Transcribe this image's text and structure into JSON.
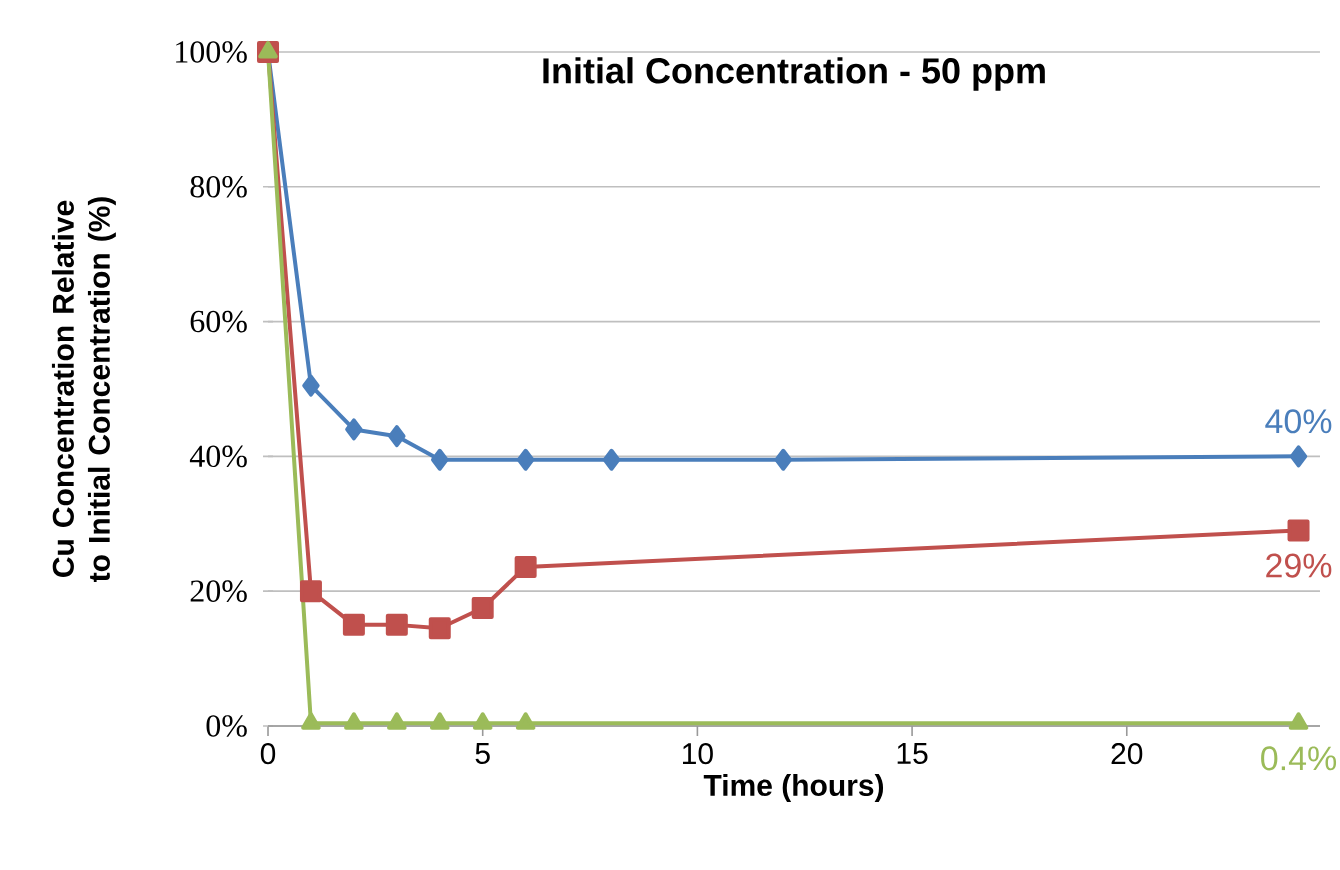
{
  "chart_data": {
    "type": "line",
    "title": "Initial Concentration - 50 ppm",
    "xlabel": "Time (hours)",
    "ylabel": "Cu Concentration Relative to Initial Concentration (%)",
    "xlim": [
      0,
      24.5
    ],
    "xticks": [
      0,
      5,
      10,
      15,
      20
    ],
    "ylim": [
      0,
      100
    ],
    "yticks": [
      {
        "value": 0,
        "label": "0%"
      },
      {
        "value": 20,
        "label": "20%"
      },
      {
        "value": 40,
        "label": "40%"
      },
      {
        "value": 60,
        "label": "60%"
      },
      {
        "value": 80,
        "label": "80%"
      },
      {
        "value": 100,
        "label": "100%"
      }
    ],
    "grid": "y",
    "series": [
      {
        "color": "#4a7ebb",
        "marker": "diamond",
        "x": [
          0,
          1,
          2,
          3,
          4,
          6,
          8,
          12,
          24
        ],
        "values": [
          100,
          50.5,
          44,
          43,
          39.5,
          39.5,
          39.5,
          39.5,
          40
        ],
        "value_labels": [
          null,
          null,
          null,
          null,
          null,
          null,
          null,
          null,
          "40%"
        ]
      },
      {
        "color": "#c0504d",
        "marker": "square",
        "x": [
          0,
          1,
          2,
          3,
          4,
          5,
          6,
          24
        ],
        "values": [
          100,
          20,
          15,
          15,
          14.5,
          17.5,
          23.6,
          29
        ],
        "value_labels": [
          null,
          null,
          null,
          null,
          null,
          null,
          null,
          "29%"
        ]
      },
      {
        "color": "#9bbb59",
        "marker": "triangle",
        "x": [
          0,
          1,
          2,
          3,
          4,
          5,
          6,
          24
        ],
        "values": [
          100,
          0.4,
          0.4,
          0.4,
          0.4,
          0.4,
          0.4,
          0.4
        ],
        "value_labels": [
          null,
          null,
          null,
          null,
          null,
          null,
          null,
          "0.4%"
        ]
      }
    ]
  }
}
